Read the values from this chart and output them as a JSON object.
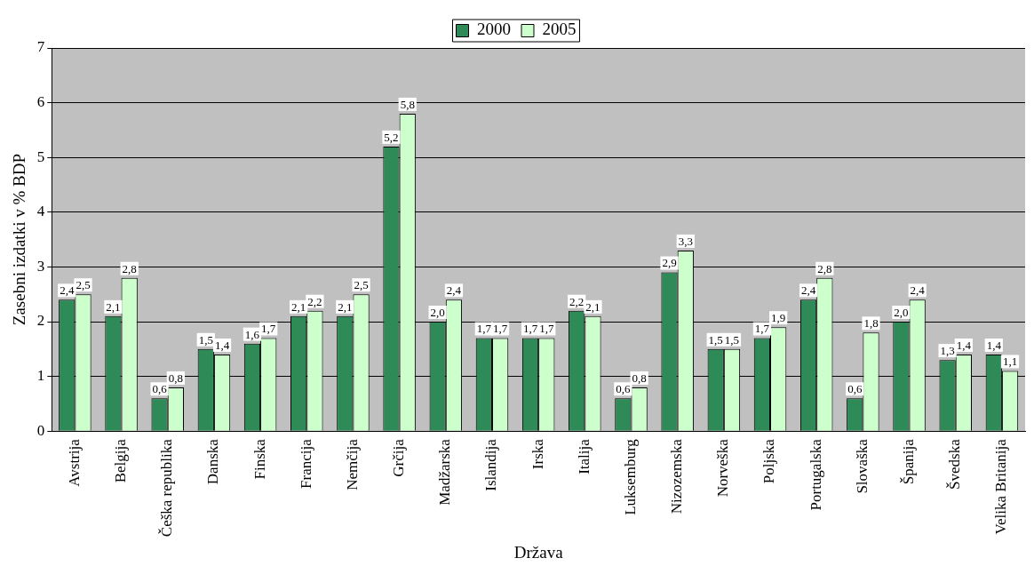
{
  "chart_data": {
    "type": "bar",
    "xlabel": "Država",
    "ylabel": "Zasebni izdatki v % BDP",
    "categories": [
      "Avstrija",
      "Belgija",
      "Češka republika",
      "Danska",
      "Finska",
      "Francija",
      "Nemčija",
      "Grčija",
      "Madžarska",
      "Islandija",
      "Irska",
      "Italija",
      "Luksemburg",
      "Nizozemska",
      "Norveška",
      "Poljska",
      "Portugalska",
      "Slovaška",
      "Španija",
      "Švedska",
      "Velika Britanija"
    ],
    "series": [
      {
        "name": "2000",
        "color": "#2e8b57",
        "values": [
          2.4,
          2.1,
          0.6,
          1.5,
          1.6,
          2.1,
          2.1,
          5.2,
          2.0,
          1.7,
          1.7,
          2.2,
          0.6,
          2.9,
          1.5,
          1.7,
          2.4,
          0.6,
          2.0,
          1.3,
          1.4
        ],
        "value_labels": [
          "2,4",
          "2,1",
          "0,6",
          "1,5",
          "1,6",
          "2,1",
          "2,1",
          "5,2",
          "2,0",
          "1,7",
          "1,7",
          "2,2",
          "0,6",
          "2,9",
          "1,5",
          "1,7",
          "2,4",
          "0,6",
          "2,0",
          "1,3",
          "1,4"
        ]
      },
      {
        "name": "2005",
        "color": "#ccffcc",
        "values": [
          2.5,
          2.8,
          0.8,
          1.4,
          1.7,
          2.2,
          2.5,
          5.8,
          2.4,
          1.7,
          1.7,
          2.1,
          0.8,
          3.3,
          1.5,
          1.9,
          2.8,
          1.8,
          2.4,
          1.4,
          1.1
        ],
        "value_labels": [
          "2,5",
          "2,8",
          "0,8",
          "1,4",
          "1,7",
          "2,2",
          "2,5",
          "5,8",
          "2,4",
          "1,7",
          "1,7",
          "2,1",
          "0,8",
          "3,3",
          "1,5",
          "1,9",
          "2,8",
          "1,8",
          "2,4",
          "1,4",
          "1,1"
        ]
      }
    ],
    "ylim": [
      0,
      7
    ],
    "yticks": [
      0,
      1,
      2,
      3,
      4,
      5,
      6,
      7
    ],
    "grid": "y",
    "legend": "top"
  }
}
